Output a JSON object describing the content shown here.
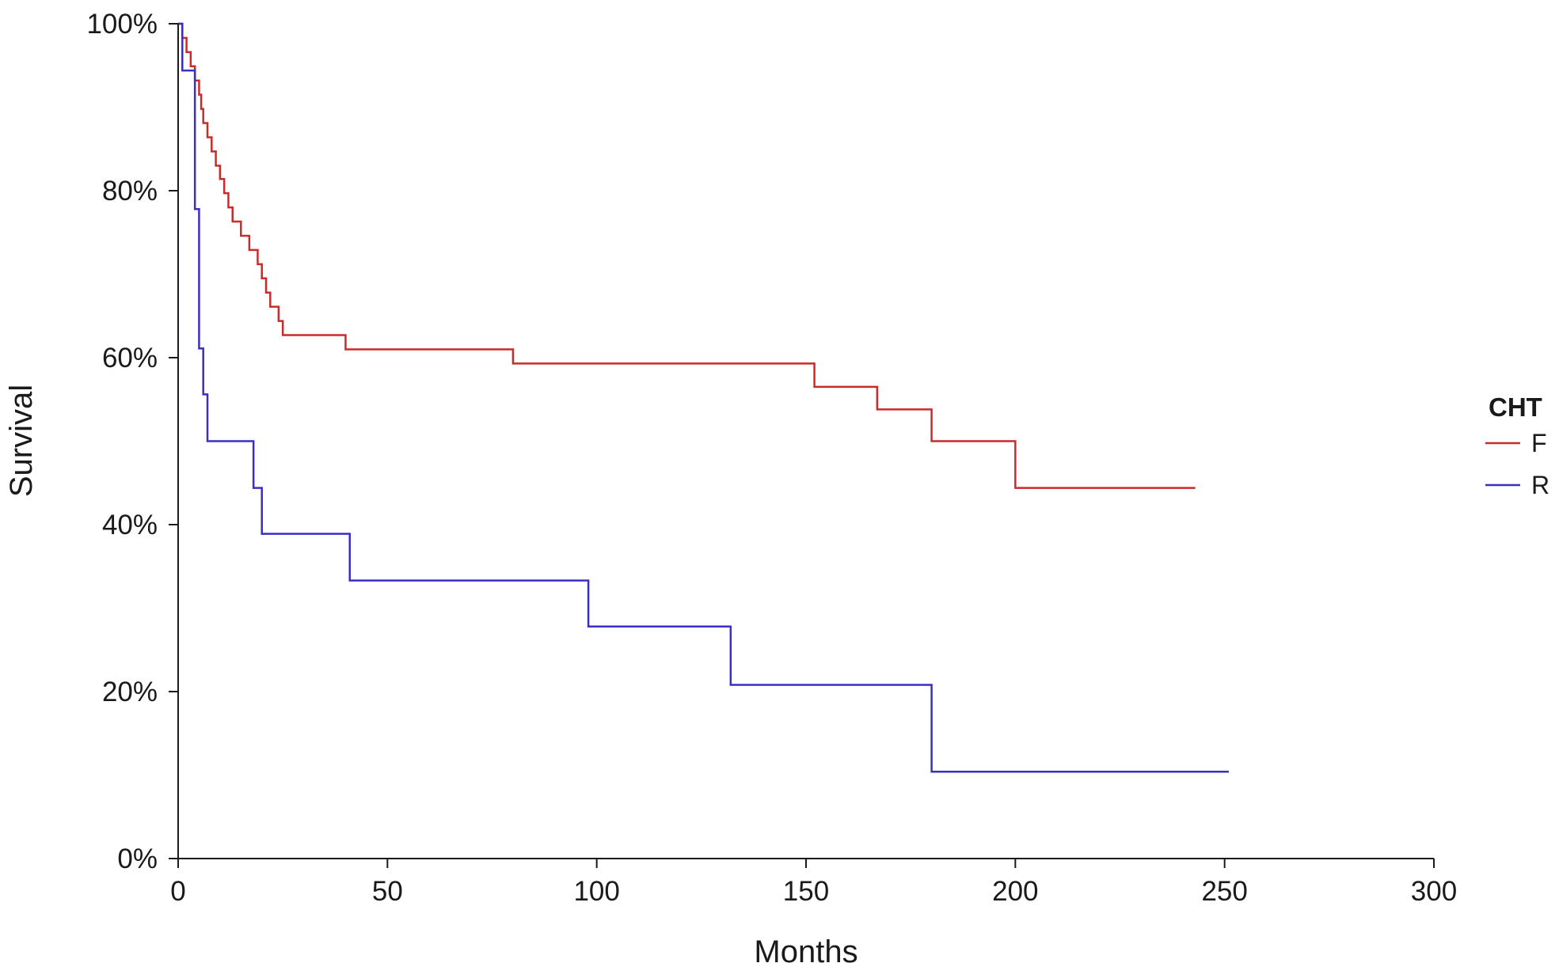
{
  "chart_data": {
    "type": "line",
    "step": true,
    "xlabel": "Months",
    "ylabel": "Survival",
    "xlim": [
      0,
      300
    ],
    "ylim": [
      0,
      1
    ],
    "x_ticks": [
      0,
      50,
      100,
      150,
      200,
      250,
      300
    ],
    "y_ticks": [
      0,
      0.2,
      0.4,
      0.6,
      0.8,
      1.0
    ],
    "y_tick_labels": [
      "0%",
      "20%",
      "40%",
      "60%",
      "80%",
      "100%"
    ],
    "grid": false,
    "legend": {
      "title": "CHT",
      "position": "right"
    },
    "series": [
      {
        "name": "F",
        "color": "#cc2a2a",
        "points": [
          [
            0,
            1.0
          ],
          [
            1,
            0.983
          ],
          [
            2,
            0.966
          ],
          [
            3,
            0.949
          ],
          [
            4,
            0.932
          ],
          [
            5,
            0.915
          ],
          [
            5.5,
            0.898
          ],
          [
            6,
            0.881
          ],
          [
            7,
            0.864
          ],
          [
            8,
            0.847
          ],
          [
            9,
            0.83
          ],
          [
            10,
            0.814
          ],
          [
            11,
            0.797
          ],
          [
            12,
            0.78
          ],
          [
            13,
            0.763
          ],
          [
            15,
            0.746
          ],
          [
            17,
            0.729
          ],
          [
            19,
            0.712
          ],
          [
            20,
            0.695
          ],
          [
            21,
            0.678
          ],
          [
            22,
            0.661
          ],
          [
            24,
            0.644
          ],
          [
            25,
            0.627
          ],
          [
            40,
            0.61
          ],
          [
            80,
            0.593
          ],
          [
            152,
            0.565
          ],
          [
            167,
            0.538
          ],
          [
            180,
            0.5
          ],
          [
            200,
            0.444
          ],
          [
            243,
            0.444
          ]
        ]
      },
      {
        "name": "R",
        "color": "#3a2ec7",
        "points": [
          [
            0,
            1.0
          ],
          [
            1,
            0.944
          ],
          [
            4,
            0.778
          ],
          [
            5,
            0.611
          ],
          [
            6,
            0.556
          ],
          [
            7,
            0.5
          ],
          [
            18,
            0.444
          ],
          [
            20,
            0.389
          ],
          [
            41,
            0.333
          ],
          [
            98,
            0.278
          ],
          [
            132,
            0.208
          ],
          [
            180,
            0.104
          ],
          [
            251,
            0.104
          ]
        ]
      }
    ]
  }
}
